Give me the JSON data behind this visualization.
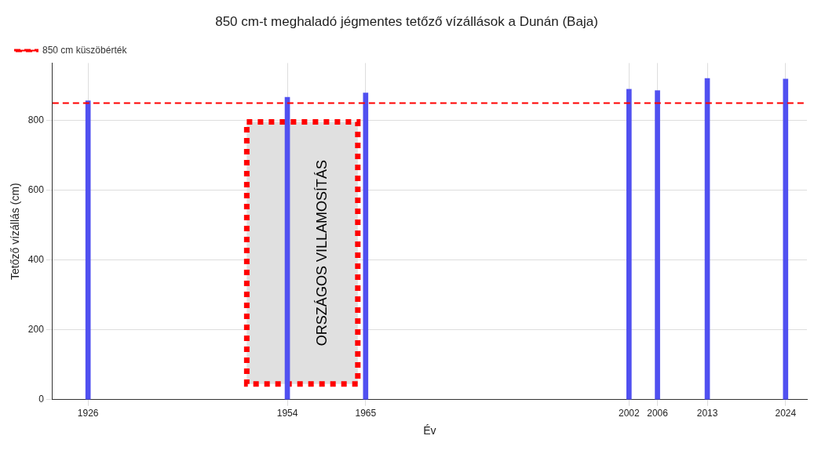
{
  "chart_data": {
    "type": "bar",
    "title": "850 cm-t meghaladó jégmentes tetőző vízállások a Dunán (Baja)",
    "xlabel": "Év",
    "ylabel": "Tetőző vízállás (cm)",
    "x": [
      1926,
      1954,
      1965,
      2002,
      2006,
      2013,
      2024
    ],
    "values": [
      857,
      867,
      879,
      890,
      886,
      921,
      919
    ],
    "color": "#5050f0",
    "xlim": [
      1921,
      2027
    ],
    "xticks": [
      1926,
      1954,
      1965,
      2002,
      2006,
      2013,
      2024
    ],
    "ylim": [
      0,
      965
    ],
    "yticks": [
      0,
      200,
      400,
      600,
      800
    ],
    "ref_lines": [
      {
        "axis": "y",
        "value": 850,
        "label": "850 cm küszöbérték",
        "color": "#ff0000",
        "line_style": "dashed"
      }
    ],
    "bands": [
      {
        "axis": "x",
        "from": 1948.3,
        "to": 1963.9,
        "label": "ORSZÁGOS VILLAMOSÍTÁS",
        "color": "#e0e0e0"
      }
    ],
    "grid": true,
    "legend": "top left"
  }
}
